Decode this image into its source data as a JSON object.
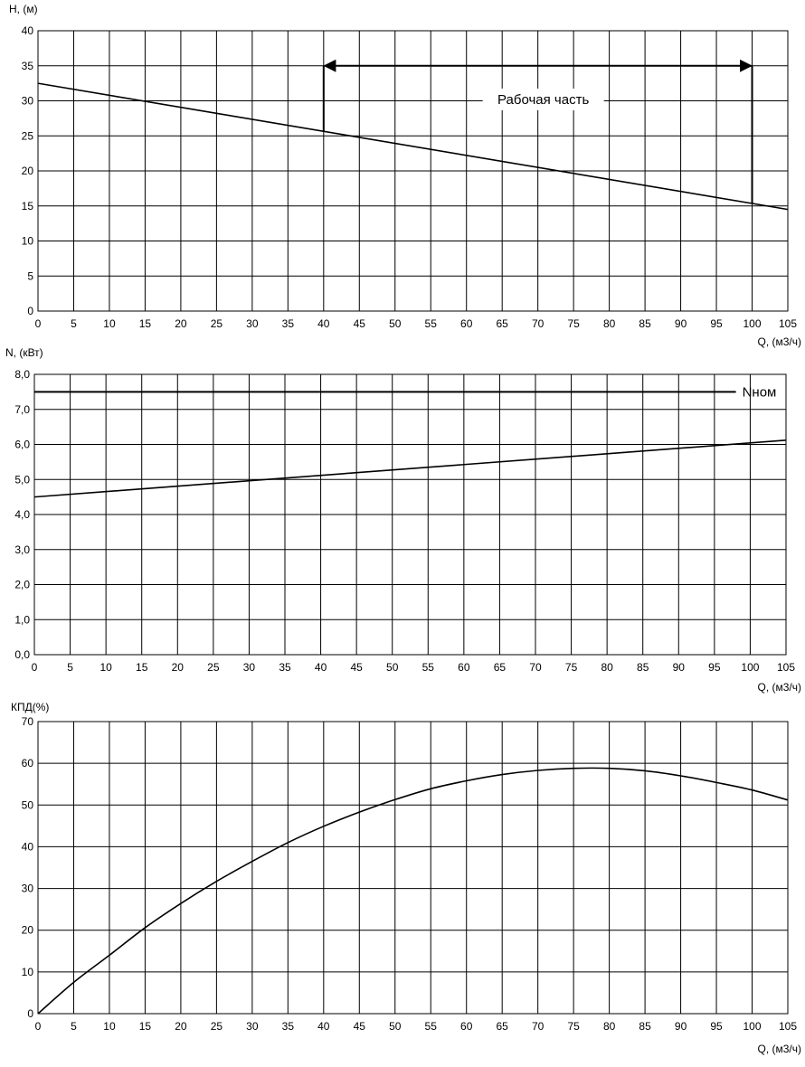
{
  "chart_data": [
    {
      "type": "line",
      "ylabel": "H, (м)",
      "xlabel": "Q, (м3/ч)",
      "xlim": [
        0,
        105
      ],
      "ylim": [
        0,
        40
      ],
      "x_ticks": [
        "0",
        "5",
        "10",
        "15",
        "20",
        "25",
        "30",
        "35",
        "40",
        "45",
        "50",
        "55",
        "60",
        "65",
        "70",
        "75",
        "80",
        "85",
        "90",
        "95",
        "100",
        "105"
      ],
      "y_ticks": [
        "0",
        "5",
        "10",
        "15",
        "20",
        "25",
        "30",
        "35",
        "40"
      ],
      "grid": true,
      "series": [
        {
          "x": [
            0,
            105
          ],
          "y": [
            32.5,
            14.5
          ]
        }
      ],
      "annotation": {
        "text": "Рабочая часть",
        "x_from": 40,
        "x_to": 100,
        "y": 35
      }
    },
    {
      "type": "line",
      "ylabel": "N, (кВт)",
      "xlabel": "Q, (м3/ч)",
      "xlim": [
        0,
        105
      ],
      "ylim": [
        0,
        8
      ],
      "x_ticks": [
        "0",
        "5",
        "10",
        "15",
        "20",
        "25",
        "30",
        "35",
        "40",
        "45",
        "50",
        "55",
        "60",
        "65",
        "70",
        "75",
        "80",
        "85",
        "90",
        "95",
        "100",
        "105"
      ],
      "y_ticks": [
        "0,0",
        "1,0",
        "2,0",
        "3,0",
        "4,0",
        "5,0",
        "6,0",
        "7,0",
        "8,0"
      ],
      "grid": true,
      "series": [
        {
          "x": [
            0,
            105
          ],
          "y": [
            4.5,
            6.12
          ]
        }
      ],
      "reference_line": {
        "label": "Nном",
        "y": 7.5,
        "x_to": 98
      }
    },
    {
      "type": "line",
      "ylabel": "КПД(%)",
      "xlabel": "Q, (м3/ч)",
      "xlim": [
        0,
        105
      ],
      "ylim": [
        0,
        70
      ],
      "x_ticks": [
        "0",
        "5",
        "10",
        "15",
        "20",
        "25",
        "30",
        "35",
        "40",
        "45",
        "50",
        "55",
        "60",
        "65",
        "70",
        "75",
        "80",
        "85",
        "90",
        "95",
        "100",
        "105"
      ],
      "y_ticks": [
        "0",
        "10",
        "20",
        "30",
        "40",
        "50",
        "60",
        "70"
      ],
      "grid": true,
      "series": [
        {
          "x": [
            0,
            5,
            10,
            15,
            20,
            25,
            30,
            35,
            40,
            45,
            50,
            55,
            60,
            65,
            70,
            75,
            80,
            85,
            90,
            95,
            100,
            105
          ],
          "y": [
            0,
            7.5,
            14.0,
            20.6,
            26.4,
            31.7,
            36.5,
            41.0,
            44.9,
            48.3,
            51.3,
            53.9,
            55.8,
            57.3,
            58.3,
            58.8,
            58.8,
            58.2,
            57.0,
            55.4,
            53.6,
            51.2
          ]
        }
      ]
    }
  ]
}
